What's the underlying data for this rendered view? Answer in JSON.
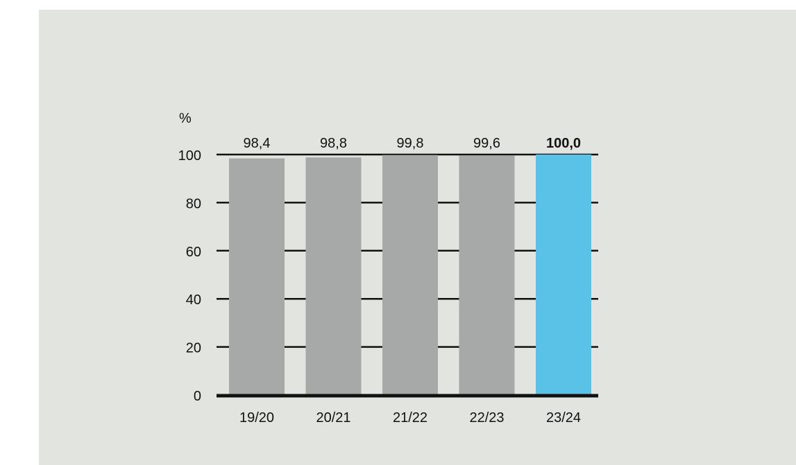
{
  "chart_data": {
    "type": "bar",
    "unit_label": "%",
    "categories": [
      "19/20",
      "20/21",
      "21/22",
      "22/23",
      "23/24"
    ],
    "values": [
      98.4,
      98.8,
      99.8,
      99.6,
      100.0
    ],
    "value_labels": [
      "98,4",
      "98,8",
      "99,8",
      "99,6",
      "100,0"
    ],
    "highlight_index": 4,
    "ylim": [
      0,
      100
    ],
    "yticks": [
      0,
      20,
      40,
      60,
      80,
      100
    ],
    "ytick_labels": [
      "0",
      "20",
      "40",
      "60",
      "80",
      "100"
    ],
    "grid": true,
    "colors": {
      "bar": "#a7a9a9",
      "highlight": "#5bc2e7",
      "background": "#e1e4df",
      "axis": "#111111"
    }
  }
}
